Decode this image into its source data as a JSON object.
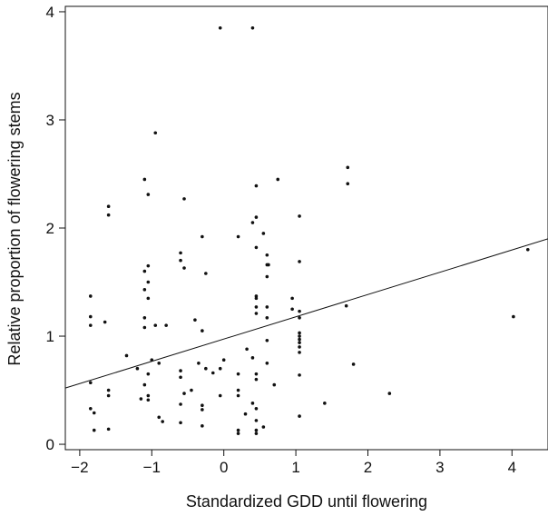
{
  "chart_data": {
    "type": "scatter",
    "title": "",
    "xlabel": "Standardized GDD until flowering",
    "ylabel": "Relative proportion of flowering stems",
    "xlim": [
      -2.2,
      4.5
    ],
    "ylim": [
      -0.05,
      4.05
    ],
    "xticks": [
      -2,
      -1,
      0,
      1,
      2,
      3,
      4
    ],
    "xtick_labels": [
      "−2",
      "−1",
      "0",
      "1",
      "2",
      "3",
      "4"
    ],
    "yticks": [
      0,
      1,
      2,
      3,
      4
    ],
    "ytick_labels": [
      "0",
      "1",
      "2",
      "3",
      "4"
    ],
    "grid": false,
    "legend": "none",
    "point_color": "#111111",
    "trend_line": {
      "x": [
        -2.2,
        4.5
      ],
      "y": [
        0.52,
        1.9
      ]
    },
    "points": [
      {
        "x": -0.05,
        "y": 3.85
      },
      {
        "x": 0.4,
        "y": 3.85
      },
      {
        "x": -0.95,
        "y": 2.88
      },
      {
        "x": 1.72,
        "y": 2.56
      },
      {
        "x": 1.72,
        "y": 2.41
      },
      {
        "x": 0.75,
        "y": 2.45
      },
      {
        "x": -1.1,
        "y": 2.45
      },
      {
        "x": -1.05,
        "y": 2.31
      },
      {
        "x": -0.55,
        "y": 2.27
      },
      {
        "x": 0.45,
        "y": 2.39
      },
      {
        "x": -1.6,
        "y": 2.2
      },
      {
        "x": -1.6,
        "y": 2.12
      },
      {
        "x": 0.45,
        "y": 2.1
      },
      {
        "x": 0.4,
        "y": 2.05
      },
      {
        "x": 1.05,
        "y": 2.11
      },
      {
        "x": 0.55,
        "y": 1.95
      },
      {
        "x": 0.45,
        "y": 1.82
      },
      {
        "x": -0.3,
        "y": 1.92
      },
      {
        "x": 0.2,
        "y": 1.92
      },
      {
        "x": -0.6,
        "y": 1.77
      },
      {
        "x": -0.6,
        "y": 1.7
      },
      {
        "x": -0.55,
        "y": 1.63
      },
      {
        "x": -0.25,
        "y": 1.58
      },
      {
        "x": 0.6,
        "y": 1.75
      },
      {
        "x": 0.6,
        "y": 1.66
      },
      {
        "x": 0.62,
        "y": 1.66
      },
      {
        "x": 0.6,
        "y": 1.55
      },
      {
        "x": 1.05,
        "y": 1.69
      },
      {
        "x": -1.05,
        "y": 1.65
      },
      {
        "x": -1.1,
        "y": 1.6
      },
      {
        "x": -1.05,
        "y": 1.5
      },
      {
        "x": -1.1,
        "y": 1.43
      },
      {
        "x": -1.05,
        "y": 1.35
      },
      {
        "x": -1.85,
        "y": 1.37
      },
      {
        "x": -1.85,
        "y": 1.18
      },
      {
        "x": -1.85,
        "y": 1.1
      },
      {
        "x": -1.65,
        "y": 1.13
      },
      {
        "x": -1.1,
        "y": 1.17
      },
      {
        "x": -1.1,
        "y": 1.08
      },
      {
        "x": -0.95,
        "y": 1.1
      },
      {
        "x": -0.8,
        "y": 1.1
      },
      {
        "x": -0.4,
        "y": 1.15
      },
      {
        "x": -0.3,
        "y": 1.05
      },
      {
        "x": 0.45,
        "y": 1.37
      },
      {
        "x": 0.45,
        "y": 1.35
      },
      {
        "x": 0.45,
        "y": 1.27
      },
      {
        "x": 0.45,
        "y": 1.21
      },
      {
        "x": 0.6,
        "y": 1.27
      },
      {
        "x": 0.6,
        "y": 1.17
      },
      {
        "x": 0.95,
        "y": 1.35
      },
      {
        "x": 0.95,
        "y": 1.25
      },
      {
        "x": 1.05,
        "y": 1.23
      },
      {
        "x": 1.05,
        "y": 1.17
      },
      {
        "x": 1.05,
        "y": 1.03
      },
      {
        "x": 1.05,
        "y": 1.0
      },
      {
        "x": 1.05,
        "y": 0.97
      },
      {
        "x": 1.05,
        "y": 0.94
      },
      {
        "x": 1.05,
        "y": 0.9
      },
      {
        "x": 1.05,
        "y": 0.85
      },
      {
        "x": 1.7,
        "y": 1.28
      },
      {
        "x": 4.02,
        "y": 1.18
      },
      {
        "x": 4.22,
        "y": 1.8
      },
      {
        "x": -1.35,
        "y": 0.82
      },
      {
        "x": -1.0,
        "y": 0.78
      },
      {
        "x": -0.9,
        "y": 0.75
      },
      {
        "x": -1.05,
        "y": 0.65
      },
      {
        "x": -1.2,
        "y": 0.7
      },
      {
        "x": -0.6,
        "y": 0.68
      },
      {
        "x": -0.6,
        "y": 0.62
      },
      {
        "x": -0.35,
        "y": 0.75
      },
      {
        "x": -0.25,
        "y": 0.7
      },
      {
        "x": -0.15,
        "y": 0.66
      },
      {
        "x": 0.0,
        "y": 0.78
      },
      {
        "x": -0.05,
        "y": 0.7
      },
      {
        "x": 0.2,
        "y": 0.65
      },
      {
        "x": 0.32,
        "y": 0.88
      },
      {
        "x": 0.4,
        "y": 0.8
      },
      {
        "x": 0.45,
        "y": 0.65
      },
      {
        "x": 0.45,
        "y": 0.6
      },
      {
        "x": 0.6,
        "y": 0.96
      },
      {
        "x": 0.6,
        "y": 0.75
      },
      {
        "x": 0.7,
        "y": 0.55
      },
      {
        "x": 1.05,
        "y": 0.64
      },
      {
        "x": 1.8,
        "y": 0.74
      },
      {
        "x": -1.85,
        "y": 0.57
      },
      {
        "x": -1.6,
        "y": 0.5
      },
      {
        "x": -1.6,
        "y": 0.45
      },
      {
        "x": -1.85,
        "y": 0.33
      },
      {
        "x": -1.8,
        "y": 0.29
      },
      {
        "x": -1.1,
        "y": 0.55
      },
      {
        "x": -1.05,
        "y": 0.45
      },
      {
        "x": -1.05,
        "y": 0.41
      },
      {
        "x": -1.15,
        "y": 0.42
      },
      {
        "x": -0.9,
        "y": 0.25
      },
      {
        "x": -0.85,
        "y": 0.21
      },
      {
        "x": -0.55,
        "y": 0.47
      },
      {
        "x": -0.45,
        "y": 0.5
      },
      {
        "x": -0.6,
        "y": 0.37
      },
      {
        "x": -0.3,
        "y": 0.36
      },
      {
        "x": -0.3,
        "y": 0.32
      },
      {
        "x": -0.05,
        "y": 0.45
      },
      {
        "x": 0.2,
        "y": 0.5
      },
      {
        "x": 0.2,
        "y": 0.45
      },
      {
        "x": 0.4,
        "y": 0.38
      },
      {
        "x": 0.45,
        "y": 0.33
      },
      {
        "x": 0.3,
        "y": 0.28
      },
      {
        "x": 0.45,
        "y": 0.22
      },
      {
        "x": 0.55,
        "y": 0.16
      },
      {
        "x": 1.4,
        "y": 0.38
      },
      {
        "x": 2.3,
        "y": 0.47
      },
      {
        "x": 1.05,
        "y": 0.26
      },
      {
        "x": -1.8,
        "y": 0.13
      },
      {
        "x": -1.6,
        "y": 0.14
      },
      {
        "x": -0.6,
        "y": 0.2
      },
      {
        "x": -0.3,
        "y": 0.17
      },
      {
        "x": 0.2,
        "y": 0.13
      },
      {
        "x": 0.2,
        "y": 0.1
      },
      {
        "x": 0.45,
        "y": 0.13
      },
      {
        "x": 0.45,
        "y": 0.1
      }
    ]
  }
}
